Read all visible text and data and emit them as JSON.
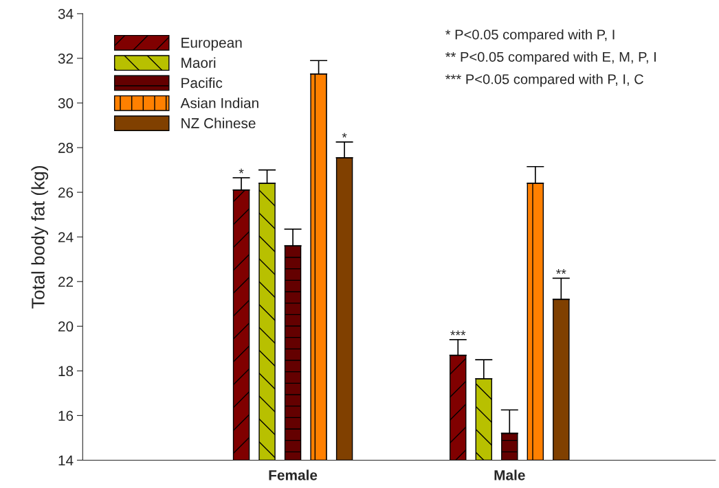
{
  "chart_data": {
    "type": "bar",
    "ylabel": "Total body fat (kg)",
    "categories": [
      "Female",
      "Male"
    ],
    "series": [
      {
        "name": "European",
        "color": "#800000",
        "values": [
          26.1,
          18.7
        ],
        "errors": [
          [
            26.1,
            26.65
          ],
          [
            18.7,
            19.4
          ]
        ]
      },
      {
        "name": "Maori",
        "color": "#b8c000",
        "values": [
          26.4,
          17.65
        ],
        "errors": [
          [
            26.4,
            27.0
          ],
          [
            17.65,
            18.5
          ]
        ]
      },
      {
        "name": "Pacific",
        "color": "#640000",
        "values": [
          23.6,
          15.2
        ],
        "errors": [
          [
            23.6,
            24.35
          ],
          [
            15.2,
            16.25
          ]
        ]
      },
      {
        "name": "Asian Indian",
        "color": "#ff8000",
        "values": [
          31.3,
          26.4
        ],
        "errors": [
          [
            31.3,
            31.9
          ],
          [
            26.4,
            27.15
          ]
        ]
      },
      {
        "name": "NZ Chinese",
        "color": "#804000",
        "values": [
          27.55,
          21.2
        ],
        "errors": [
          [
            27.55,
            28.25
          ],
          [
            21.2,
            22.15
          ]
        ]
      }
    ],
    "ylim": [
      14,
      34
    ],
    "yticks": [
      14,
      16,
      18,
      20,
      22,
      24,
      26,
      28,
      30,
      32,
      34
    ],
    "annotations": [
      "*",
      "*",
      "***",
      "**",
      "* P<0.05 compared with P, I",
      "** P<0.05 compared with E, M, P, I",
      "*** P<0.05 compared with P, I, C"
    ],
    "legend": "top left",
    "grid": false
  }
}
